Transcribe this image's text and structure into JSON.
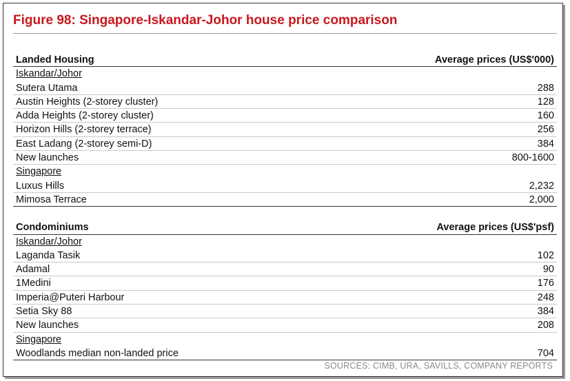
{
  "title": "Figure 98: Singapore-Iskandar-Johor house price comparison",
  "landed": {
    "header_label": "Landed Housing",
    "header_value": "Average prices (US$'000)",
    "sections": [
      {
        "name": "Iskandar/Johor",
        "rows": [
          {
            "label": "Sutera Utama",
            "value": "288"
          },
          {
            "label": "Austin Heights (2-storey cluster)",
            "value": "128"
          },
          {
            "label": "Adda Heights (2-storey cluster)",
            "value": "160"
          },
          {
            "label": "Horizon Hills (2-storey terrace)",
            "value": "256"
          },
          {
            "label": "East Ladang (2-storey semi-D)",
            "value": "384"
          },
          {
            "label": "New launches",
            "value": "800-1600"
          }
        ]
      },
      {
        "name": "Singapore",
        "rows": [
          {
            "label": "Luxus Hills",
            "value": "2,232"
          },
          {
            "label": "Mimosa Terrace",
            "value": "2,000"
          }
        ]
      }
    ]
  },
  "condo": {
    "header_label": "Condominiums",
    "header_value": "Average prices (US$'psf)",
    "sections": [
      {
        "name": "Iskandar/Johor",
        "rows": [
          {
            "label": "Laganda Tasik",
            "value": "102"
          },
          {
            "label": "Adamal",
            "value": "90"
          },
          {
            "label": "1Medini",
            "value": "176"
          },
          {
            "label": "Imperia@Puteri Harbour",
            "value": "248"
          },
          {
            "label": "Setia Sky 88",
            "value": "384"
          },
          {
            "label": "New launches",
            "value": "208"
          }
        ]
      },
      {
        "name": "Singapore",
        "rows": [
          {
            "label": "Woodlands median non-landed price",
            "value": "704"
          }
        ]
      }
    ]
  },
  "sources": "SOURCES: CIMB, URA, SAVILLS, COMPANY REPORTS"
}
